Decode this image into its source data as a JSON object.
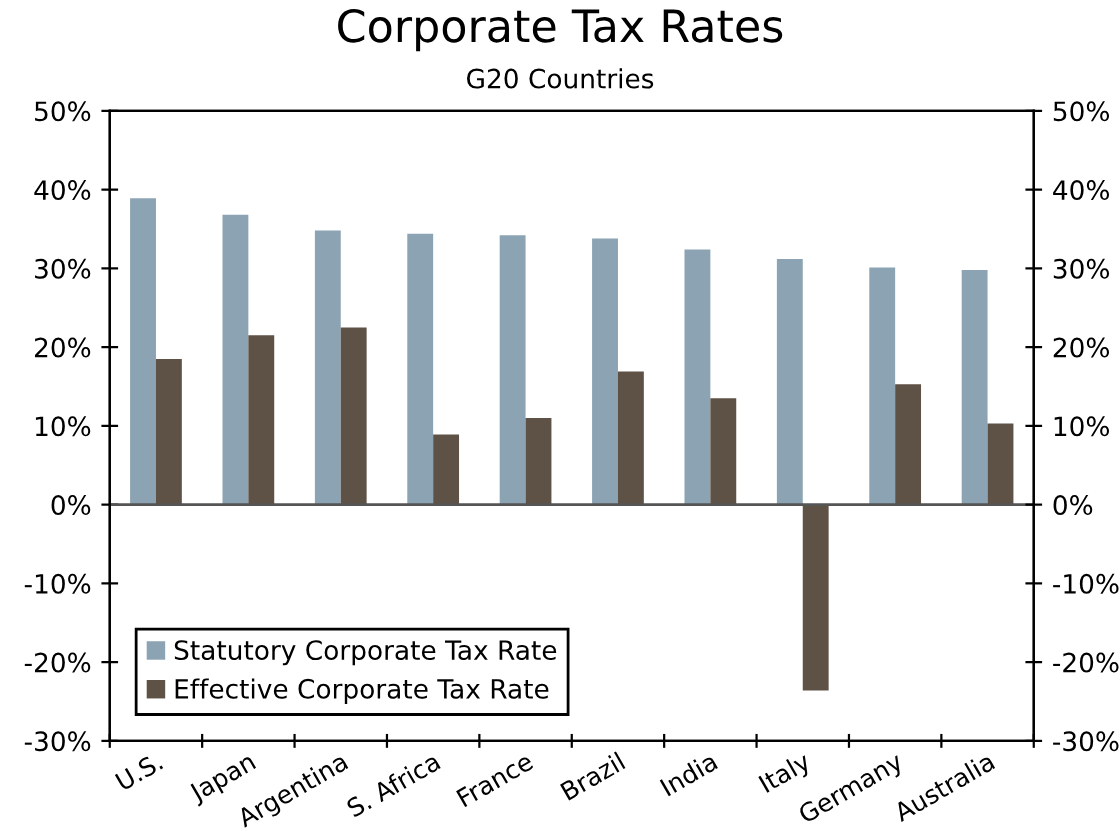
{
  "chart_data": {
    "type": "bar",
    "title": "Corporate Tax Rates",
    "subtitle": "G20 Countries",
    "categories": [
      "U.S.",
      "Japan",
      "Argentina",
      "S. Africa",
      "France",
      "Brazil",
      "India",
      "Italy",
      "Germany",
      "Australia"
    ],
    "series": [
      {
        "name": "Statutory Corporate Tax Rate",
        "color": "#8ba3b3",
        "values": [
          38.9,
          36.8,
          34.8,
          34.4,
          34.2,
          33.8,
          32.4,
          31.2,
          30.1,
          29.8
        ]
      },
      {
        "name": "Effective Corporate Tax Rate",
        "color": "#5e5146",
        "values": [
          18.5,
          21.5,
          22.5,
          8.9,
          11.0,
          16.9,
          13.5,
          -23.6,
          15.3,
          10.3
        ]
      }
    ],
    "ylim": [
      -30,
      50
    ],
    "yticks": [
      {
        "value": -30,
        "label": "-30%"
      },
      {
        "value": -20,
        "label": "-20%"
      },
      {
        "value": -10,
        "label": "-10%"
      },
      {
        "value": 0,
        "label": "0%"
      },
      {
        "value": 10,
        "label": "10%"
      },
      {
        "value": 20,
        "label": "20%"
      },
      {
        "value": 30,
        "label": "30%"
      },
      {
        "value": 40,
        "label": "40%"
      },
      {
        "value": 50,
        "label": "50%"
      }
    ],
    "y2lim": [
      -30,
      50
    ],
    "y2ticks": [
      {
        "value": -30,
        "label": "-30%"
      },
      {
        "value": -20,
        "label": "-20%"
      },
      {
        "value": -10,
        "label": "-10%"
      },
      {
        "value": 0,
        "label": "0%"
      },
      {
        "value": 10,
        "label": "10%"
      },
      {
        "value": 20,
        "label": "20%"
      },
      {
        "value": 30,
        "label": "30%"
      },
      {
        "value": 40,
        "label": "40%"
      },
      {
        "value": 50,
        "label": "50%"
      }
    ],
    "ref_lines": [
      {
        "axis": "y",
        "value": 0,
        "color": "#555555"
      }
    ],
    "grid": false,
    "legend": "bottom left"
  }
}
